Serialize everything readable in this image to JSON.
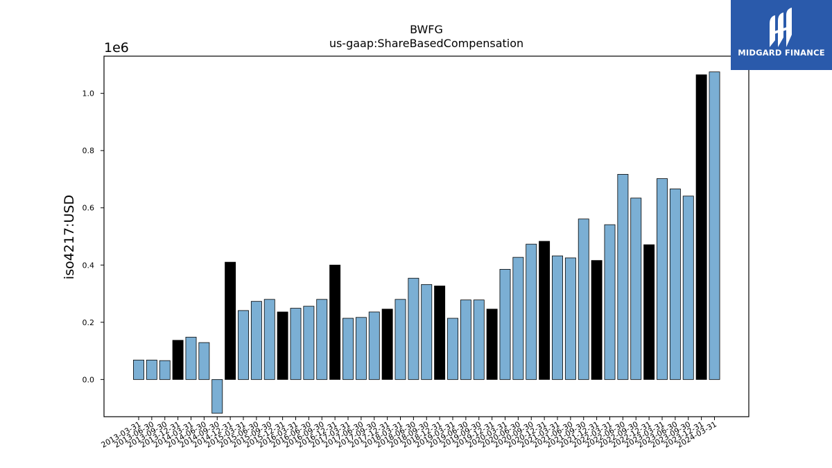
{
  "brand": {
    "name": "MIDGARD FINANCE",
    "bg_color": "#2a5aab",
    "icon": "midgard-logo-icon"
  },
  "colors": {
    "bar_default": "#7bafd4",
    "bar_q4": "#000000"
  },
  "chart_data": {
    "type": "bar",
    "title": "BWFG",
    "subtitle": "us-gaap:ShareBasedCompensation",
    "xlabel": "",
    "ylabel": "iso4217:USD",
    "y_scale_label": "1e6",
    "ylim": [
      -0.13,
      1.13
    ],
    "yticks": [
      0.0,
      0.2,
      0.4,
      0.6,
      0.8,
      1.0
    ],
    "ytick_labels": [
      "0.0",
      "0.2",
      "0.4",
      "0.6",
      "0.8",
      "1.0"
    ],
    "grid": false,
    "categories": [
      "2013-03-31",
      "2013-06-30",
      "2013-09-30",
      "2013-12-31",
      "2014-03-31",
      "2014-06-30",
      "2014-09-30",
      "2014-12-31",
      "2015-03-31",
      "2015-06-30",
      "2015-09-30",
      "2015-12-31",
      "2016-03-31",
      "2016-06-30",
      "2016-09-30",
      "2016-12-31",
      "2017-03-31",
      "2017-06-30",
      "2017-09-30",
      "2017-12-31",
      "2018-03-31",
      "2018-06-30",
      "2018-09-30",
      "2018-12-31",
      "2019-03-31",
      "2019-06-30",
      "2019-09-30",
      "2019-12-31",
      "2020-03-31",
      "2020-06-30",
      "2020-09-30",
      "2020-12-31",
      "2021-03-31",
      "2021-06-30",
      "2021-09-30",
      "2021-12-31",
      "2022-03-31",
      "2022-06-30",
      "2022-09-30",
      "2022-12-31",
      "2023-03-31",
      "2023-06-30",
      "2023-09-30",
      "2023-12-31",
      "2024-03-31"
    ],
    "values": [
      0.068,
      0.068,
      0.066,
      0.137,
      0.148,
      0.129,
      -0.118,
      0.41,
      0.241,
      0.273,
      0.28,
      0.236,
      0.249,
      0.256,
      0.28,
      0.4,
      0.214,
      0.217,
      0.236,
      0.246,
      0.28,
      0.354,
      0.332,
      0.327,
      0.214,
      0.278,
      0.278,
      0.246,
      0.385,
      0.427,
      0.473,
      0.483,
      0.432,
      0.425,
      0.561,
      0.416,
      0.541,
      0.717,
      0.634,
      0.471,
      0.702,
      0.666,
      0.641,
      1.065,
      1.075
    ],
    "highlight_quarter": "12-31"
  }
}
